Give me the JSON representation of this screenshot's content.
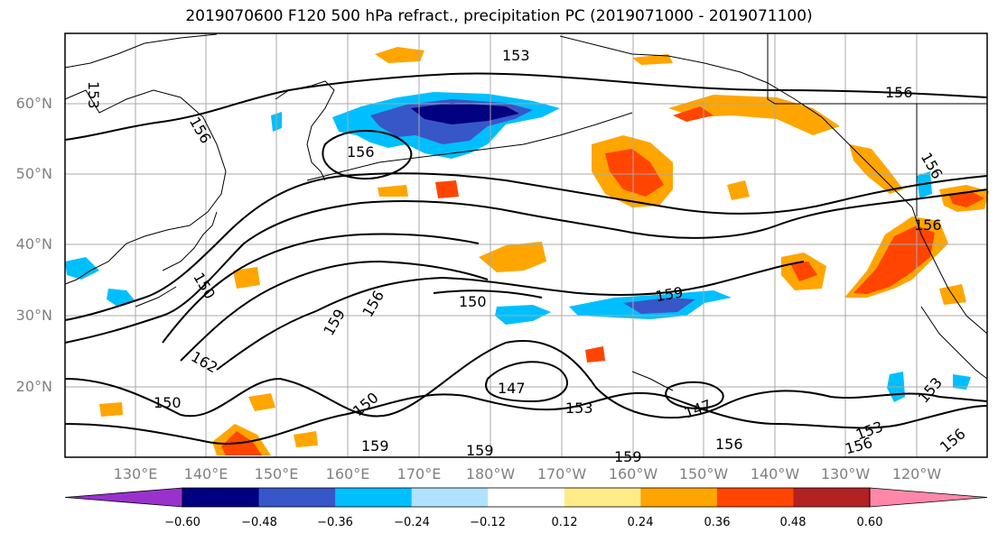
{
  "title": "2019070600 F120 500 hPa refract., precipitation PC (2019071000 - 2019071100)",
  "lat_labels": [
    "60°N",
    "50°N",
    "40°N",
    "30°N",
    "20°N"
  ],
  "lon_labels": [
    "130°E",
    "140°E",
    "150°E",
    "160°E",
    "170°E",
    "180°W",
    "170°W",
    "160°W",
    "150°W",
    "140°W",
    "130°W",
    "120°W"
  ],
  "contour_labels": [
    "153",
    "153",
    "156",
    "156",
    "156",
    "156",
    "156",
    "156",
    "159",
    "159",
    "159",
    "159",
    "159",
    "150",
    "150",
    "150",
    "147",
    "147",
    "153",
    "153",
    "153",
    "156",
    "156",
    "162",
    "156",
    "150"
  ],
  "colorbar": {
    "tick_labels": [
      "−0.60",
      "−0.48",
      "−0.36",
      "−0.24",
      "−0.12",
      "0.12",
      "0.24",
      "0.36",
      "0.48",
      "0.60"
    ],
    "colors": [
      "#9932cc",
      "#000080",
      "#3757c8",
      "#00bfff",
      "#b0e2ff",
      "#ffffff",
      "#ffeb88",
      "#ffa500",
      "#ff4500",
      "#b22222",
      "#ff88aa"
    ]
  },
  "colors": {
    "frame": "#000000",
    "grid": "#a9a9a9",
    "contour": "#000000",
    "axis_text": "#808080"
  }
}
